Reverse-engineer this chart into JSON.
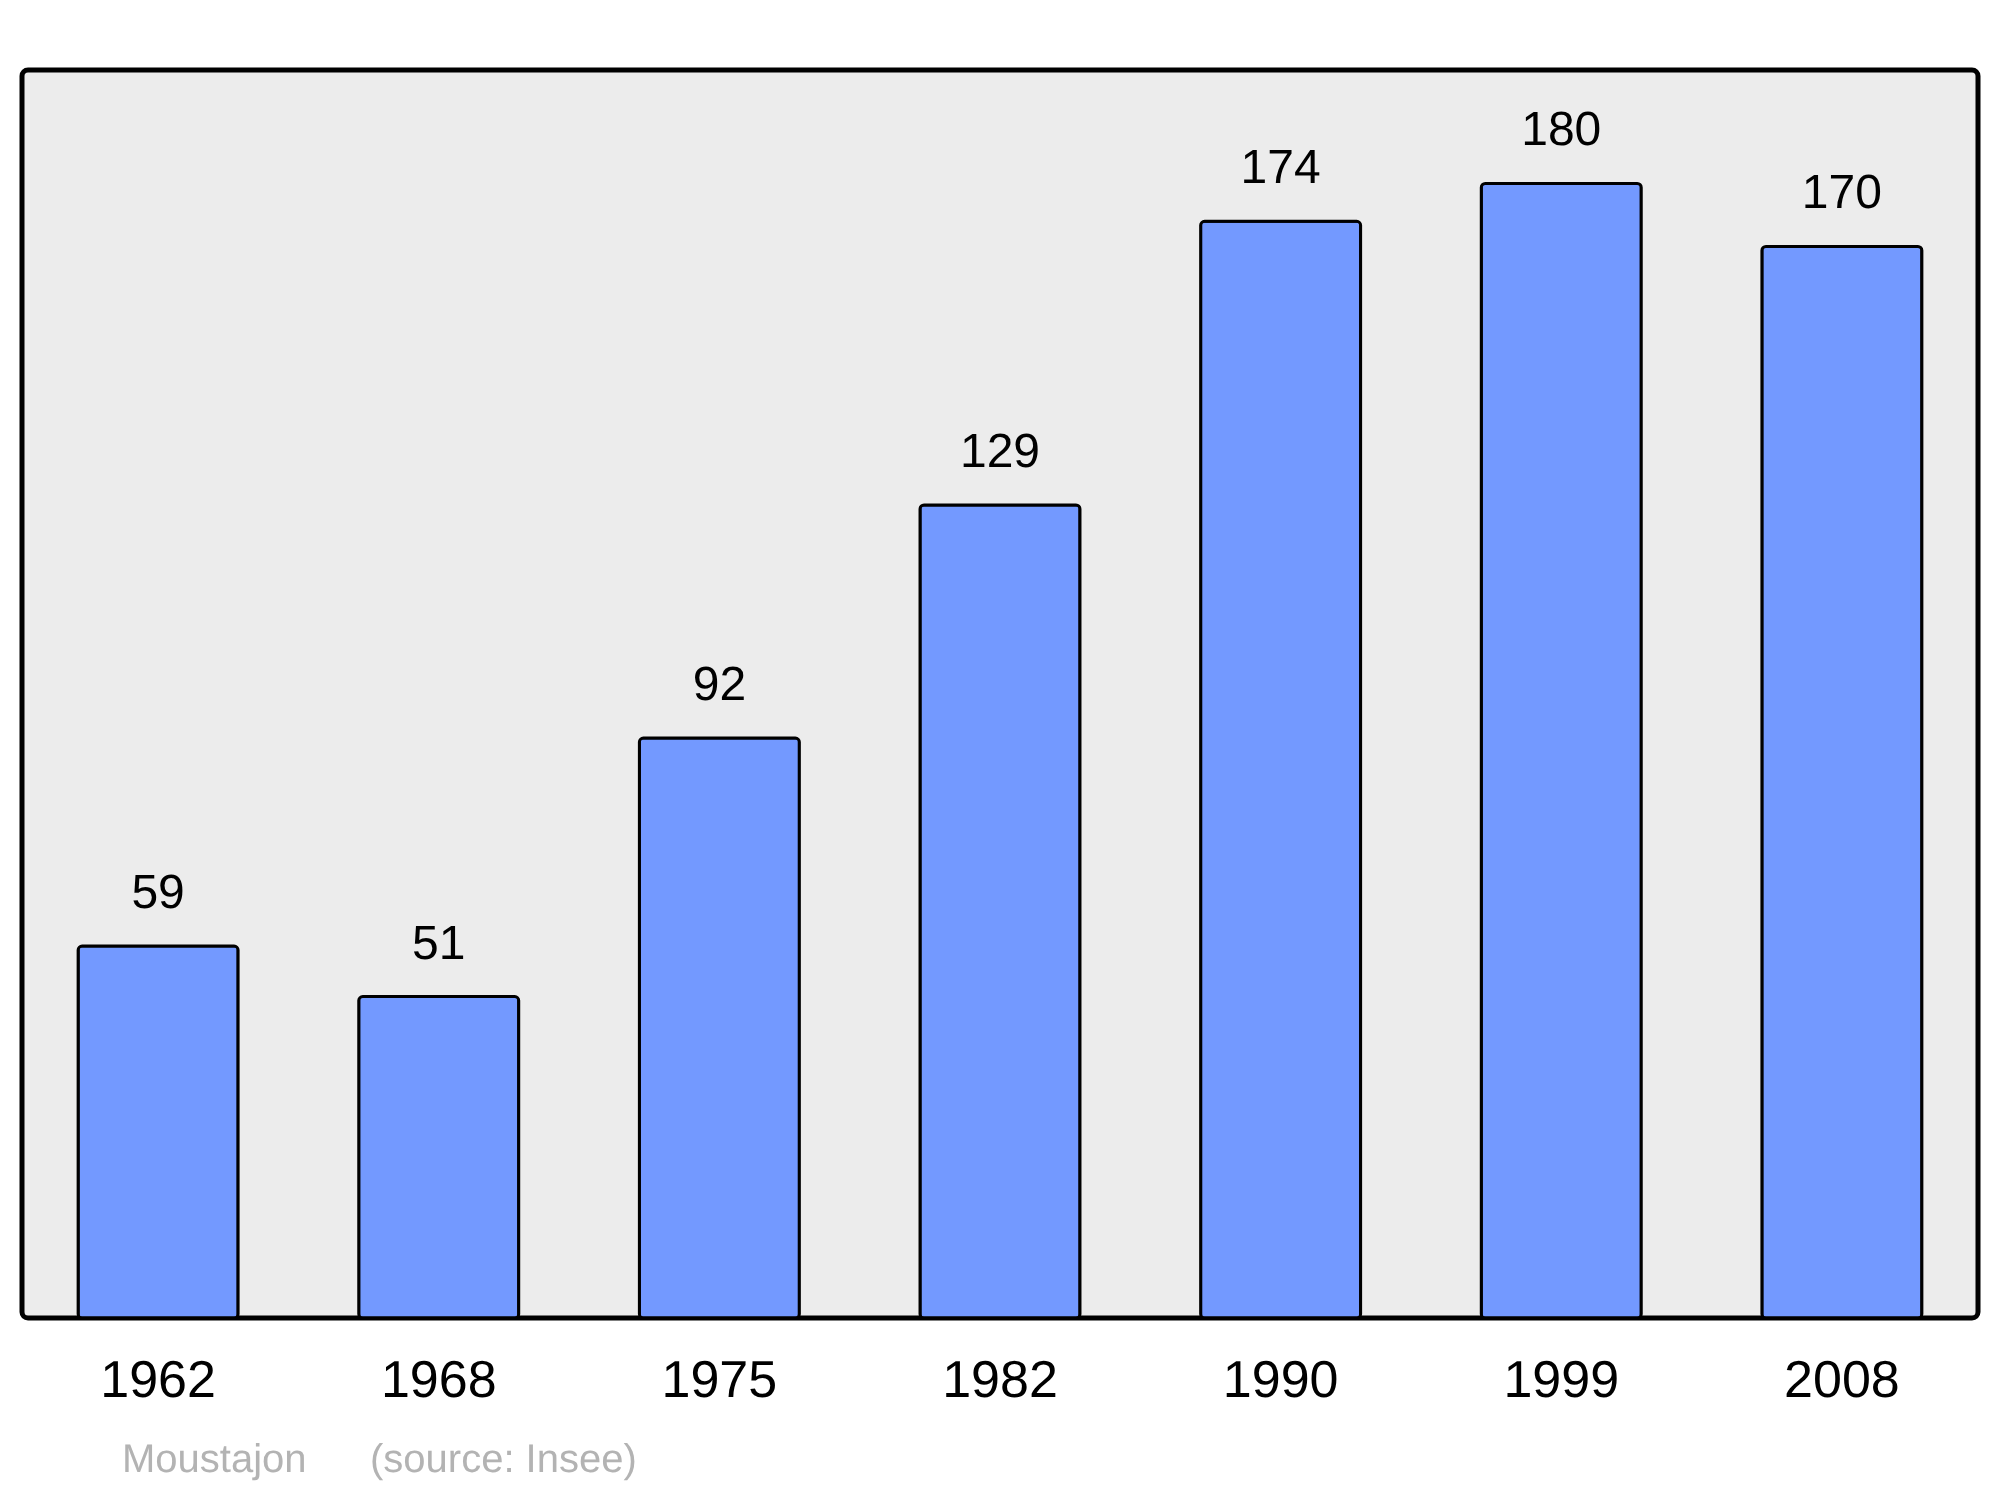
{
  "chart_data": {
    "type": "bar",
    "categories": [
      "1962",
      "1968",
      "1975",
      "1982",
      "1990",
      "1999",
      "2008"
    ],
    "values": [
      59,
      51,
      92,
      129,
      174,
      180,
      170
    ],
    "color": "#7399ff",
    "ylim": [
      0,
      198
    ],
    "data_labels": true,
    "grid": false,
    "tick_labels": "x",
    "annotations": [
      "Moustajon",
      "(source: Insee)"
    ]
  }
}
